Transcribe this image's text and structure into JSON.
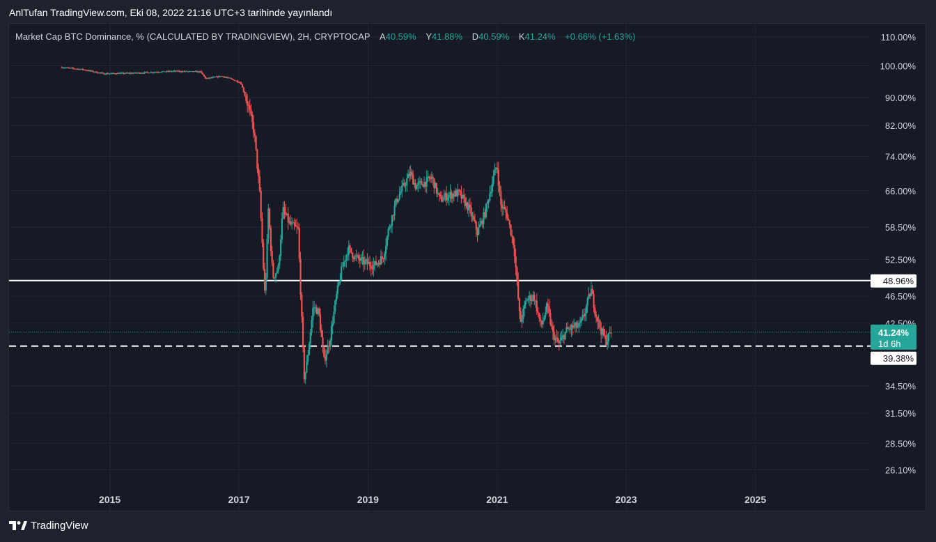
{
  "header": {
    "publish_line": "AnlTufan TradingView.com, Eki 08, 2022 21:16 UTC+3 tarihinde yayınlandı"
  },
  "legend": {
    "symbol": "Market Cap BTC Dominance, % (CALCULATED BY TRADINGVIEW), 2H, CRYPTOCAP",
    "open_label": "A",
    "open_value": "40.59%",
    "high_label": "Y",
    "high_value": "41.88%",
    "low_label": "D",
    "low_value": "40.59%",
    "close_label": "K",
    "close_value": "41.24%",
    "change": "+0.66% (+1.63%)"
  },
  "footer": {
    "brand": "TradingView"
  },
  "colors": {
    "up": "#26a69a",
    "down": "#ef5350",
    "grid": "#232733",
    "background": "#161a25",
    "axis_text": "#d1d4dc",
    "level_line": "#ffffff"
  },
  "chart_data": {
    "type": "candlestick",
    "title": "Market Cap BTC Dominance, % (CALCULATED BY TRADINGVIEW), 2H, CRYPTOCAP",
    "y_scale": "log",
    "ylim": [
      25.0,
      115.0
    ],
    "xlim": [
      "2013-06-10",
      "2026-10-15"
    ],
    "y_ticks": [
      "110.00%",
      "100.00%",
      "90.00%",
      "82.00%",
      "74.00%",
      "66.00%",
      "58.50%",
      "52.50%",
      "46.50%",
      "42.50%",
      "34.50%",
      "31.50%",
      "28.50%",
      "26.10%"
    ],
    "x_ticks": [
      {
        "date": "2015-01-01",
        "label": "2015"
      },
      {
        "date": "2017-01-01",
        "label": "2017"
      },
      {
        "date": "2019-01-01",
        "label": "2019"
      },
      {
        "date": "2021-01-01",
        "label": "2021"
      },
      {
        "date": "2023-01-01",
        "label": "2023"
      },
      {
        "date": "2025-01-01",
        "label": "2025"
      }
    ],
    "price_path": [
      [
        "2014-04-01",
        99.5
      ],
      [
        "2014-08-01",
        98.8
      ],
      [
        "2014-12-01",
        97.4
      ],
      [
        "2015-06-01",
        97.6
      ],
      [
        "2016-01-01",
        98.2
      ],
      [
        "2016-06-01",
        98.0
      ],
      [
        "2016-07-01",
        95.8
      ],
      [
        "2016-10-01",
        96.6
      ],
      [
        "2016-12-01",
        95.5
      ],
      [
        "2017-01-15",
        94.5
      ],
      [
        "2017-03-01",
        87.0
      ],
      [
        "2017-04-01",
        80.0
      ],
      [
        "2017-05-01",
        66.0
      ],
      [
        "2017-06-01",
        46.0
      ],
      [
        "2017-06-20",
        62.0
      ],
      [
        "2017-07-15",
        49.5
      ],
      [
        "2017-08-15",
        51.0
      ],
      [
        "2017-09-10",
        62.0
      ],
      [
        "2017-10-20",
        59.0
      ],
      [
        "2017-12-05",
        58.0
      ],
      [
        "2018-01-08",
        35.5
      ],
      [
        "2018-01-20",
        36.5
      ],
      [
        "2018-03-01",
        45.0
      ],
      [
        "2018-04-01",
        44.0
      ],
      [
        "2018-05-01",
        37.5
      ],
      [
        "2018-06-01",
        40.0
      ],
      [
        "2018-07-10",
        46.5
      ],
      [
        "2018-08-10",
        51.0
      ],
      [
        "2018-09-15",
        54.5
      ],
      [
        "2018-10-20",
        53.0
      ],
      [
        "2018-12-15",
        52.0
      ],
      [
        "2019-02-10",
        51.5
      ],
      [
        "2019-04-01",
        53.0
      ],
      [
        "2019-05-01",
        58.0
      ],
      [
        "2019-06-15",
        64.0
      ],
      [
        "2019-09-01",
        70.0
      ],
      [
        "2019-10-01",
        67.0
      ],
      [
        "2019-12-01",
        68.0
      ],
      [
        "2020-01-01",
        69.0
      ],
      [
        "2020-02-15",
        64.0
      ],
      [
        "2020-04-01",
        65.0
      ],
      [
        "2020-06-01",
        65.5
      ],
      [
        "2020-08-01",
        62.0
      ],
      [
        "2020-09-15",
        57.5
      ],
      [
        "2020-10-25",
        61.0
      ],
      [
        "2020-12-15",
        69.0
      ],
      [
        "2021-01-03",
        72.0
      ],
      [
        "2021-01-25",
        63.0
      ],
      [
        "2021-03-01",
        61.0
      ],
      [
        "2021-04-10",
        55.0
      ],
      [
        "2021-05-15",
        42.5
      ],
      [
        "2021-06-20",
        46.0
      ],
      [
        "2021-08-01",
        46.5
      ],
      [
        "2021-09-10",
        42.0
      ],
      [
        "2021-10-15",
        45.0
      ],
      [
        "2021-11-15",
        41.0
      ],
      [
        "2021-12-20",
        39.6
      ],
      [
        "2022-02-01",
        41.5
      ],
      [
        "2022-03-15",
        42.0
      ],
      [
        "2022-04-15",
        42.0
      ],
      [
        "2022-05-15",
        44.0
      ],
      [
        "2022-06-20",
        47.5
      ],
      [
        "2022-07-15",
        44.0
      ],
      [
        "2022-08-15",
        41.5
      ],
      [
        "2022-09-15",
        40.0
      ],
      [
        "2022-10-08",
        41.24
      ]
    ],
    "horizontal_levels": [
      {
        "value": 48.96,
        "label": "48.96%",
        "style": "solid"
      },
      {
        "value": 39.38,
        "label": "39.38%",
        "style": "dashed"
      }
    ],
    "current_price": {
      "value": 41.24,
      "label": "41.24%",
      "countdown": "1d 6h"
    }
  }
}
